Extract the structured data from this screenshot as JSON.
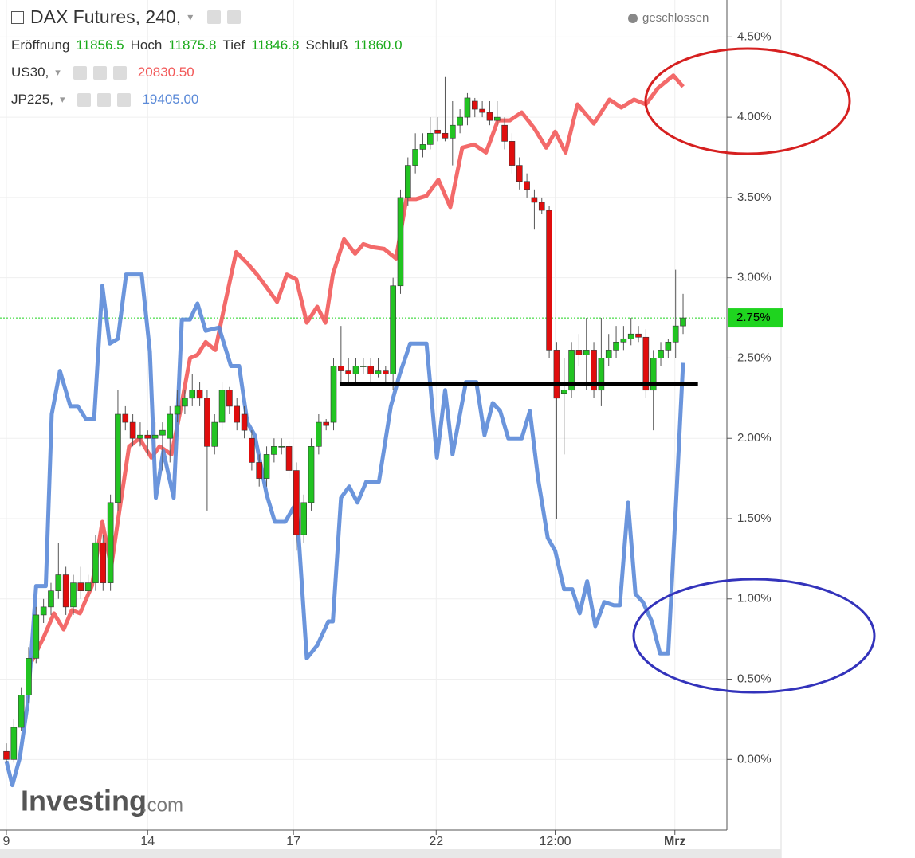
{
  "chart_data": {
    "type": "candlestick",
    "title": "DAX Futures, 240,",
    "status": "geschlossen",
    "ohlc_legend": [
      {
        "label": "Eröffnung",
        "value": "11856.5"
      },
      {
        "label": "Hoch",
        "value": "11875.8"
      },
      {
        "label": "Tief",
        "value": "11846.8"
      },
      {
        "label": "Schluß",
        "value": "11860.0"
      }
    ],
    "candles": {
      "up_color": "#22c422",
      "down_color": "#e00d0d",
      "x": [
        0,
        1,
        2,
        3,
        4,
        5,
        6,
        7,
        8,
        9,
        10,
        11,
        12,
        13,
        14,
        15,
        16,
        17,
        18,
        19,
        20,
        21,
        22,
        23,
        24,
        25,
        26,
        27,
        28,
        29,
        30,
        31,
        32,
        33,
        34,
        35,
        36,
        37,
        38,
        39,
        40,
        41,
        42,
        43,
        44,
        45,
        46,
        47,
        48,
        49,
        50,
        51,
        52,
        53,
        54,
        55,
        56,
        57,
        58,
        59,
        60,
        61,
        62,
        63,
        64,
        65,
        66,
        67,
        68,
        69,
        70,
        71,
        72,
        73,
        74,
        75,
        76,
        77,
        78,
        79,
        80,
        81,
        82,
        83,
        84,
        85,
        86,
        87,
        88,
        89,
        90,
        91
      ],
      "ohlc": [
        [
          0.05,
          0.1,
          -0.02,
          0.0
        ],
        [
          0.0,
          0.25,
          -0.02,
          0.2
        ],
        [
          0.2,
          0.45,
          0.18,
          0.4
        ],
        [
          0.4,
          0.7,
          0.35,
          0.63
        ],
        [
          0.63,
          0.95,
          0.6,
          0.9
        ],
        [
          0.9,
          1.0,
          0.85,
          0.95
        ],
        [
          0.95,
          1.1,
          0.9,
          1.05
        ],
        [
          1.05,
          1.35,
          1.0,
          1.15
        ],
        [
          1.15,
          1.2,
          0.9,
          0.95
        ],
        [
          0.95,
          1.15,
          0.9,
          1.1
        ],
        [
          1.1,
          1.2,
          1.0,
          1.05
        ],
        [
          1.05,
          1.15,
          1.0,
          1.1
        ],
        [
          1.1,
          1.4,
          1.05,
          1.35
        ],
        [
          1.35,
          1.4,
          1.05,
          1.1
        ],
        [
          1.1,
          1.65,
          1.05,
          1.6
        ],
        [
          1.6,
          2.3,
          1.55,
          2.15
        ],
        [
          2.15,
          2.2,
          2.05,
          2.1
        ],
        [
          2.1,
          2.15,
          1.95,
          2.0
        ],
        [
          2.0,
          2.1,
          1.95,
          2.02
        ],
        [
          2.02,
          2.05,
          1.9,
          2.0
        ],
        [
          2.0,
          2.1,
          1.9,
          2.02
        ],
        [
          2.02,
          2.1,
          1.8,
          2.05
        ],
        [
          2.0,
          2.2,
          1.85,
          2.15
        ],
        [
          2.15,
          2.3,
          2.1,
          2.2
        ],
        [
          2.2,
          2.3,
          2.15,
          2.25
        ],
        [
          2.25,
          2.4,
          2.2,
          2.3
        ],
        [
          2.3,
          2.35,
          2.2,
          2.25
        ],
        [
          2.25,
          2.3,
          1.55,
          1.95
        ],
        [
          1.95,
          2.15,
          1.9,
          2.1
        ],
        [
          2.1,
          2.35,
          2.05,
          2.3
        ],
        [
          2.3,
          2.32,
          2.15,
          2.2
        ],
        [
          2.2,
          2.25,
          2.05,
          2.1
        ],
        [
          2.15,
          2.2,
          2.0,
          2.05
        ],
        [
          2.0,
          2.05,
          1.8,
          1.85
        ],
        [
          1.85,
          1.9,
          1.7,
          1.75
        ],
        [
          1.75,
          1.95,
          1.7,
          1.9
        ],
        [
          1.9,
          2.0,
          1.85,
          1.95
        ],
        [
          1.95,
          2.0,
          1.9,
          1.95
        ],
        [
          1.95,
          1.98,
          1.75,
          1.8
        ],
        [
          1.8,
          1.85,
          1.3,
          1.4
        ],
        [
          1.4,
          1.65,
          1.35,
          1.6
        ],
        [
          1.6,
          2.0,
          1.55,
          1.95
        ],
        [
          1.95,
          2.15,
          1.9,
          2.1
        ],
        [
          2.1,
          2.12,
          2.05,
          2.08
        ],
        [
          2.1,
          2.5,
          2.05,
          2.45
        ],
        [
          2.45,
          2.7,
          2.35,
          2.42
        ],
        [
          2.42,
          2.5,
          2.35,
          2.4
        ],
        [
          2.4,
          2.5,
          2.35,
          2.45
        ],
        [
          2.45,
          2.5,
          2.4,
          2.45
        ],
        [
          2.45,
          2.5,
          2.35,
          2.4
        ],
        [
          2.4,
          2.5,
          2.38,
          2.42
        ],
        [
          2.42,
          2.45,
          2.35,
          2.4
        ],
        [
          2.4,
          3.0,
          2.3,
          2.95
        ],
        [
          2.95,
          3.55,
          2.9,
          3.5
        ],
        [
          3.5,
          3.75,
          3.45,
          3.7
        ],
        [
          3.7,
          3.9,
          3.65,
          3.8
        ],
        [
          3.8,
          3.9,
          3.75,
          3.83
        ],
        [
          3.83,
          4.0,
          3.8,
          3.9
        ],
        [
          3.92,
          4.0,
          3.85,
          3.9
        ],
        [
          3.9,
          4.25,
          3.85,
          3.87
        ],
        [
          3.87,
          4.1,
          3.7,
          3.95
        ],
        [
          3.95,
          4.05,
          3.9,
          4.0
        ],
        [
          4.0,
          4.15,
          3.95,
          4.12
        ],
        [
          4.1,
          4.12,
          4.0,
          4.05
        ],
        [
          4.05,
          4.1,
          4.0,
          4.03
        ],
        [
          4.03,
          4.1,
          3.95,
          3.98
        ],
        [
          3.98,
          4.1,
          3.95,
          4.0
        ],
        [
          3.95,
          4.0,
          3.8,
          3.85
        ],
        [
          3.85,
          3.9,
          3.65,
          3.7
        ],
        [
          3.7,
          3.75,
          3.55,
          3.6
        ],
        [
          3.6,
          3.65,
          3.5,
          3.55
        ],
        [
          3.5,
          3.55,
          3.3,
          3.47
        ],
        [
          3.47,
          3.5,
          3.4,
          3.42
        ],
        [
          3.42,
          3.45,
          2.5,
          2.55
        ],
        [
          2.55,
          2.6,
          1.5,
          2.25
        ],
        [
          2.28,
          2.5,
          1.9,
          2.3
        ],
        [
          2.3,
          2.6,
          2.25,
          2.55
        ],
        [
          2.55,
          2.65,
          2.45,
          2.52
        ],
        [
          2.52,
          2.75,
          2.3,
          2.55
        ],
        [
          2.55,
          2.6,
          2.25,
          2.3
        ],
        [
          2.3,
          2.75,
          2.2,
          2.5
        ],
        [
          2.5,
          2.65,
          2.45,
          2.55
        ],
        [
          2.55,
          2.7,
          2.5,
          2.6
        ],
        [
          2.6,
          2.7,
          2.55,
          2.62
        ],
        [
          2.62,
          2.75,
          2.58,
          2.65
        ],
        [
          2.65,
          2.7,
          2.6,
          2.63
        ],
        [
          2.63,
          2.68,
          2.25,
          2.3
        ],
        [
          2.3,
          2.55,
          2.05,
          2.5
        ],
        [
          2.5,
          2.6,
          2.45,
          2.55
        ],
        [
          2.55,
          2.62,
          2.5,
          2.6
        ],
        [
          2.6,
          3.05,
          2.5,
          2.7
        ],
        [
          2.7,
          2.9,
          2.65,
          2.75
        ]
      ]
    },
    "series": [
      {
        "name": "US30,",
        "last": "20830.50",
        "color": "#f25a5a",
        "x": [
          3.4,
          5.0,
          6.4,
          7.7,
          8.8,
          9.9,
          11.5,
          12.9,
          14.1,
          15.2,
          16.5,
          17.9,
          19.5,
          20.6,
          22.2,
          23.3,
          24.7,
          25.7,
          26.8,
          28.1,
          29.4,
          30.9,
          32.4,
          33.7,
          35.0,
          36.4,
          37.7,
          39.0,
          40.4,
          41.8,
          42.9,
          43.9,
          45.4,
          46.9,
          48.0,
          49.3,
          50.8,
          52.4,
          53.8,
          55.1,
          56.5,
          58.1,
          59.7,
          61.3,
          62.9,
          64.5,
          66.1,
          67.7,
          69.3,
          71.0,
          72.6,
          73.8,
          75.2,
          76.8,
          79.0,
          81.1,
          82.7,
          84.4,
          86.0,
          87.6,
          89.7,
          91.0
        ],
        "values": [
          0.61,
          0.76,
          0.91,
          0.81,
          0.93,
          0.91,
          1.08,
          1.48,
          1.2,
          1.55,
          1.95,
          2.0,
          1.88,
          1.95,
          1.9,
          2.15,
          2.5,
          2.52,
          2.6,
          2.55,
          2.84,
          3.16,
          3.09,
          3.02,
          2.94,
          2.85,
          3.02,
          2.99,
          2.72,
          2.82,
          2.72,
          3.02,
          3.24,
          3.15,
          3.21,
          3.19,
          3.18,
          3.12,
          3.49,
          3.49,
          3.51,
          3.61,
          3.44,
          3.81,
          3.83,
          3.78,
          3.98,
          3.98,
          4.03,
          3.93,
          3.81,
          3.91,
          3.78,
          4.08,
          3.96,
          4.11,
          4.06,
          4.11,
          4.08,
          4.18,
          4.26,
          4.19
        ]
      },
      {
        "name": "JP225,",
        "last": "19405.00",
        "color": "#5b8ad8",
        "x": [
          0,
          0.8,
          1.8,
          2.9,
          4.0,
          5.3,
          6.1,
          7.2,
          8.6,
          9.6,
          10.7,
          11.8,
          12.9,
          13.9,
          15.0,
          16.1,
          18.2,
          19.3,
          20.1,
          21.1,
          22.5,
          23.6,
          24.7,
          25.7,
          26.8,
          28.6,
          30.2,
          31.3,
          32.4,
          33.4,
          35.0,
          36.1,
          37.5,
          39.0,
          40.4,
          41.8,
          43.3,
          43.9,
          45.0,
          46.1,
          47.2,
          48.4,
          50.1,
          51.7,
          52.9,
          54.3,
          56.5,
          57.9,
          59.0,
          60.0,
          61.8,
          63.2,
          64.3,
          65.4,
          66.4,
          67.5,
          69.3,
          70.4,
          71.5,
          72.8,
          73.8,
          75.0,
          76.1,
          77.1,
          78.1,
          79.2,
          80.4,
          81.7,
          82.5,
          83.6,
          84.6,
          85.6,
          86.8,
          87.9,
          89.0,
          90.0,
          91.0
        ],
        "values": [
          -0.01,
          -0.16,
          0.01,
          0.36,
          1.08,
          1.08,
          2.15,
          2.42,
          2.2,
          2.2,
          2.12,
          2.12,
          2.95,
          2.59,
          2.62,
          3.02,
          3.02,
          2.54,
          1.63,
          1.92,
          1.63,
          2.74,
          2.74,
          2.84,
          2.67,
          2.69,
          2.45,
          2.45,
          2.1,
          2.02,
          1.65,
          1.48,
          1.48,
          1.6,
          0.63,
          0.71,
          0.86,
          0.86,
          1.63,
          1.7,
          1.6,
          1.73,
          1.73,
          2.2,
          2.4,
          2.59,
          2.59,
          1.88,
          2.3,
          1.9,
          2.35,
          2.35,
          2.02,
          2.22,
          2.17,
          2.0,
          2.0,
          2.17,
          1.75,
          1.38,
          1.3,
          1.06,
          1.06,
          0.91,
          1.11,
          0.83,
          0.98,
          0.96,
          0.96,
          1.6,
          1.03,
          0.98,
          0.86,
          0.66,
          0.66,
          1.55,
          2.47
        ]
      }
    ],
    "xlim": [
      0,
      97
    ],
    "xticks": [
      {
        "value": 0,
        "label": "9"
      },
      {
        "value": 19,
        "label": "14"
      },
      {
        "value": 38.6,
        "label": "17"
      },
      {
        "value": 57.8,
        "label": "22"
      },
      {
        "value": 73.8,
        "label": "12:00"
      },
      {
        "value": 89.9,
        "label": "Mrz"
      }
    ],
    "ylim": [
      -0.44,
      4.73
    ],
    "yticks": [
      {
        "value": 0,
        "label": "0.00%"
      },
      {
        "value": 0.5,
        "label": "0.50%"
      },
      {
        "value": 1,
        "label": "1.00%"
      },
      {
        "value": 1.5,
        "label": "1.50%"
      },
      {
        "value": 2,
        "label": "2.00%"
      },
      {
        "value": 2.5,
        "label": "2.50%"
      },
      {
        "value": 3,
        "label": "3.00%"
      },
      {
        "value": 3.5,
        "label": "3.50%"
      },
      {
        "value": 4,
        "label": "4.00%"
      },
      {
        "value": 4.5,
        "label": "4.50%"
      }
    ],
    "last_price": {
      "value": 2.75,
      "label": "2.75%",
      "color": "#1fd41f"
    },
    "hline": {
      "value": 2.34,
      "x": [
        44.8,
        93.0
      ],
      "color": "#000000"
    },
    "grid": true,
    "watermark": [
      "Investing",
      ".com"
    ]
  }
}
